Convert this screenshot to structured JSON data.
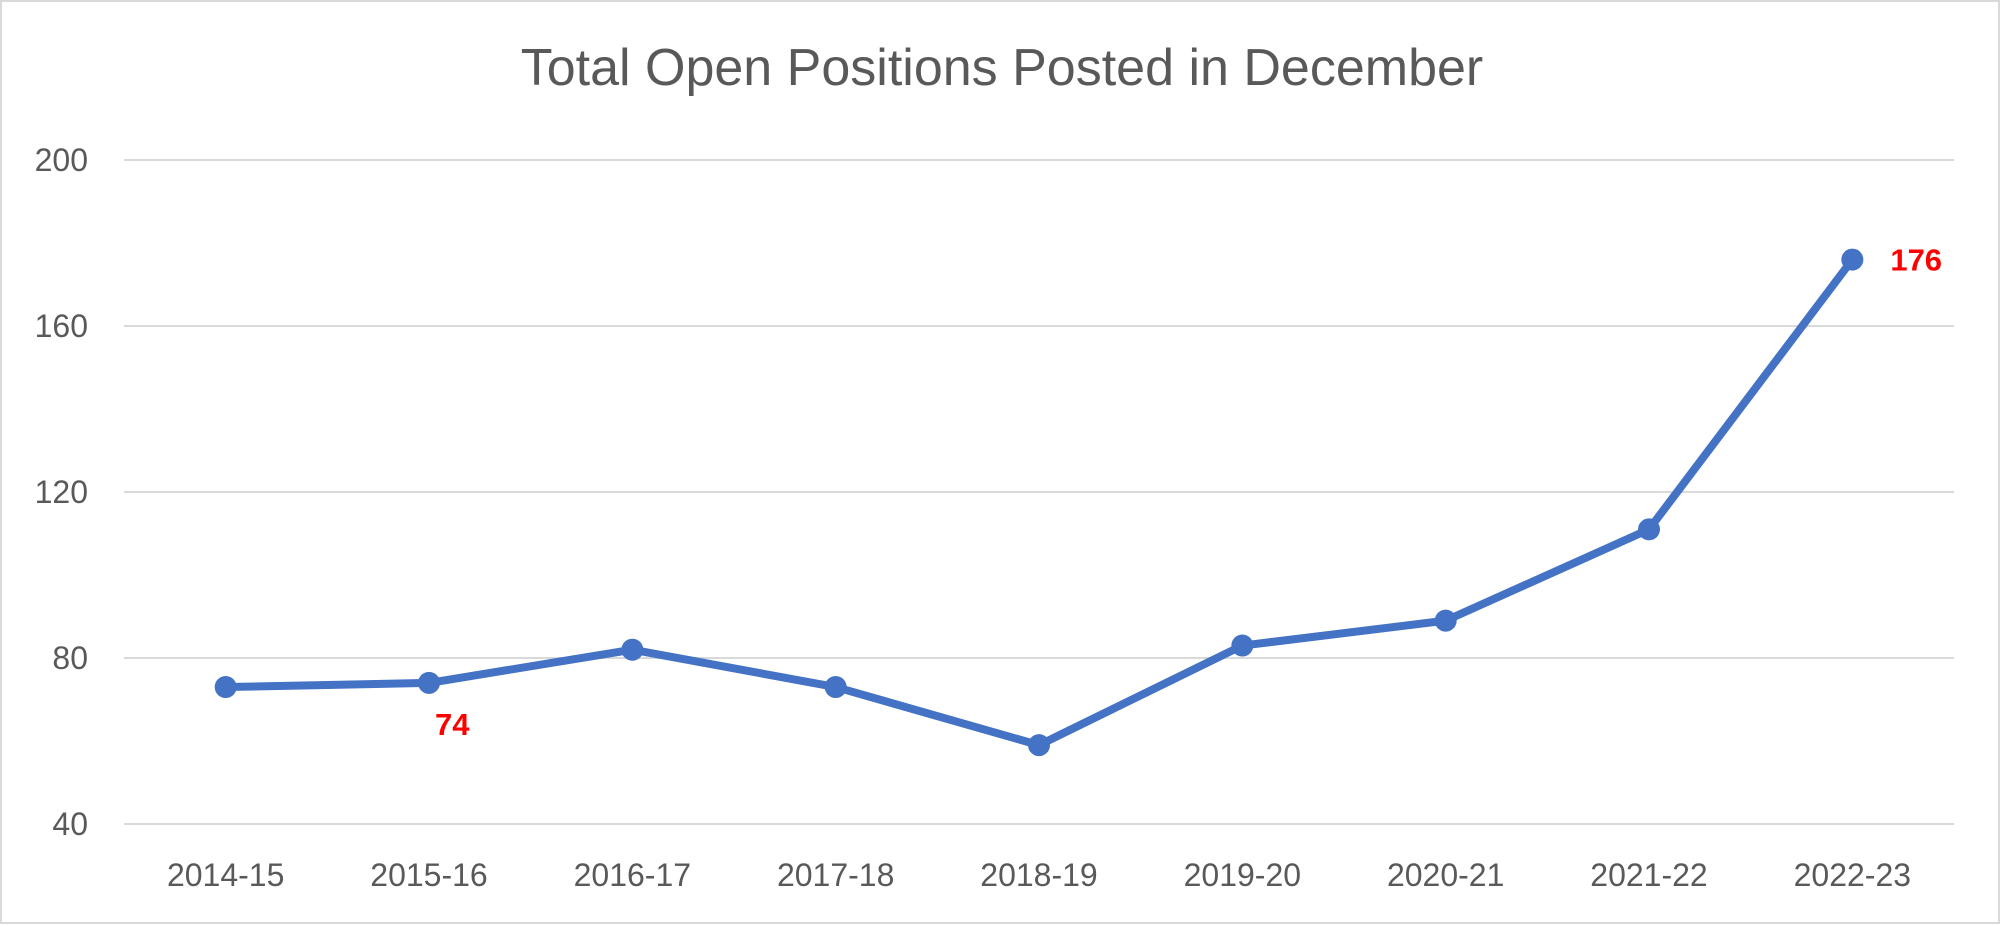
{
  "chart_data": {
    "type": "line",
    "title": "Total Open Positions Posted in December",
    "xlabel": "",
    "ylabel": "",
    "categories": [
      "2014-15",
      "2015-16",
      "2016-17",
      "2017-18",
      "2018-19",
      "2019-20",
      "2020-21",
      "2021-22",
      "2022-23"
    ],
    "series": [
      {
        "values": [
          73,
          74,
          82,
          73,
          59,
          83,
          89,
          111,
          176
        ],
        "color": "#4472c4"
      }
    ],
    "ylim": [
      40,
      200
    ],
    "yticks": [
      "40",
      "80",
      "120",
      "160",
      "200"
    ],
    "ytick_values": [
      40,
      80,
      120,
      160,
      200
    ],
    "grid": true,
    "legend": "none",
    "data_labels": [
      {
        "index": 1,
        "text": "74",
        "position": "below-right"
      },
      {
        "index": 8,
        "text": "176",
        "position": "right"
      }
    ],
    "data_label_color": "#ff0000"
  }
}
